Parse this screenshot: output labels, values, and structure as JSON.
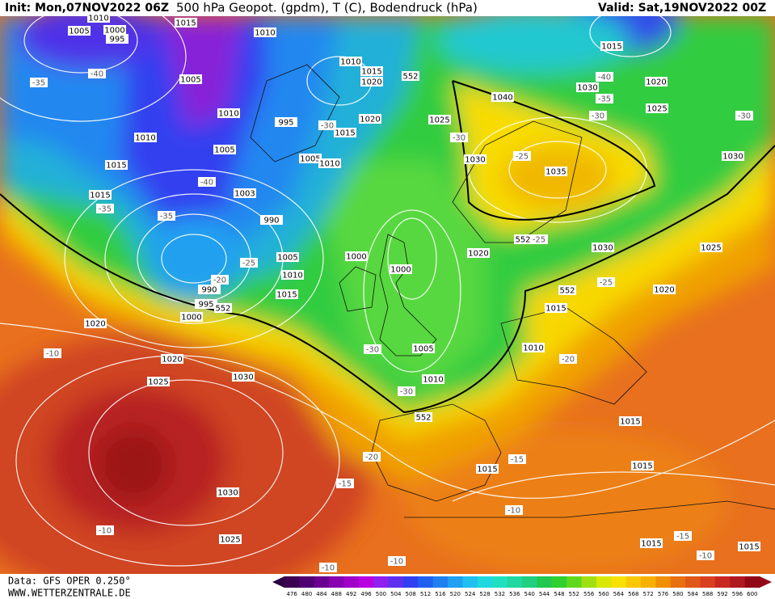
{
  "header": {
    "init": "Init: Mon,07NOV2022 06Z",
    "title": "500 hPa Geopot. (gpdm), T (C), Bodendruck (hPa)",
    "valid": "Valid: Sat,19NOV2022 00Z"
  },
  "footer": {
    "source": "Data: GFS OPER 0.250°",
    "site": "WWW.WETTERZENTRALE.DE"
  },
  "isobar_labels": [
    1010,
    1015,
    1005,
    1000,
    995,
    1010,
    1005,
    1010,
    995,
    1005,
    1010,
    1015,
    1015,
    1003,
    990,
    1005,
    1010,
    1015,
    990,
    995,
    1000,
    1020,
    1020,
    1025,
    1030,
    1030,
    1025,
    1000,
    1000,
    1005,
    1010,
    1010,
    1015,
    1020,
    1020,
    1015,
    1005,
    1010,
    1025,
    1030,
    1040,
    1035,
    1020,
    1030,
    1015,
    1010,
    1015,
    1015,
    1015,
    1015,
    1015,
    1015,
    1030,
    1020,
    1025,
    1030,
    1025,
    1020
  ],
  "temperature_labels": [
    -35,
    -40,
    -30,
    -30,
    -25,
    -40,
    -35,
    -35,
    -25,
    -20,
    -30,
    -35,
    -40,
    -30,
    -25,
    -25,
    -30,
    -30,
    -20,
    -20,
    -15,
    -15,
    -10,
    -10,
    -10,
    -15,
    -10,
    -10,
    -10
  ],
  "geopotential_labels": [
    552,
    552,
    552,
    552,
    552
  ],
  "colorbar": {
    "values": [
      476,
      480,
      484,
      488,
      492,
      496,
      500,
      504,
      508,
      512,
      516,
      520,
      524,
      528,
      532,
      536,
      540,
      544,
      548,
      552,
      556,
      560,
      564,
      568,
      572,
      576,
      580,
      584,
      588,
      592,
      596,
      600
    ],
    "colors": [
      "#3c0050",
      "#500070",
      "#6a0090",
      "#8800b0",
      "#a000c8",
      "#b800e0",
      "#9020f0",
      "#6030f0",
      "#3040f0",
      "#2060f0",
      "#2080f0",
      "#20a0f0",
      "#20c0f0",
      "#20d8e0",
      "#20e0c0",
      "#20d8a0",
      "#20d080",
      "#20c850",
      "#30d030",
      "#60d820",
      "#a0e010",
      "#d8e800",
      "#f8e000",
      "#f8c800",
      "#f8b000",
      "#f09000",
      "#e87010",
      "#e05818",
      "#d84020",
      "#c82820",
      "#b01820",
      "#900818"
    ]
  }
}
